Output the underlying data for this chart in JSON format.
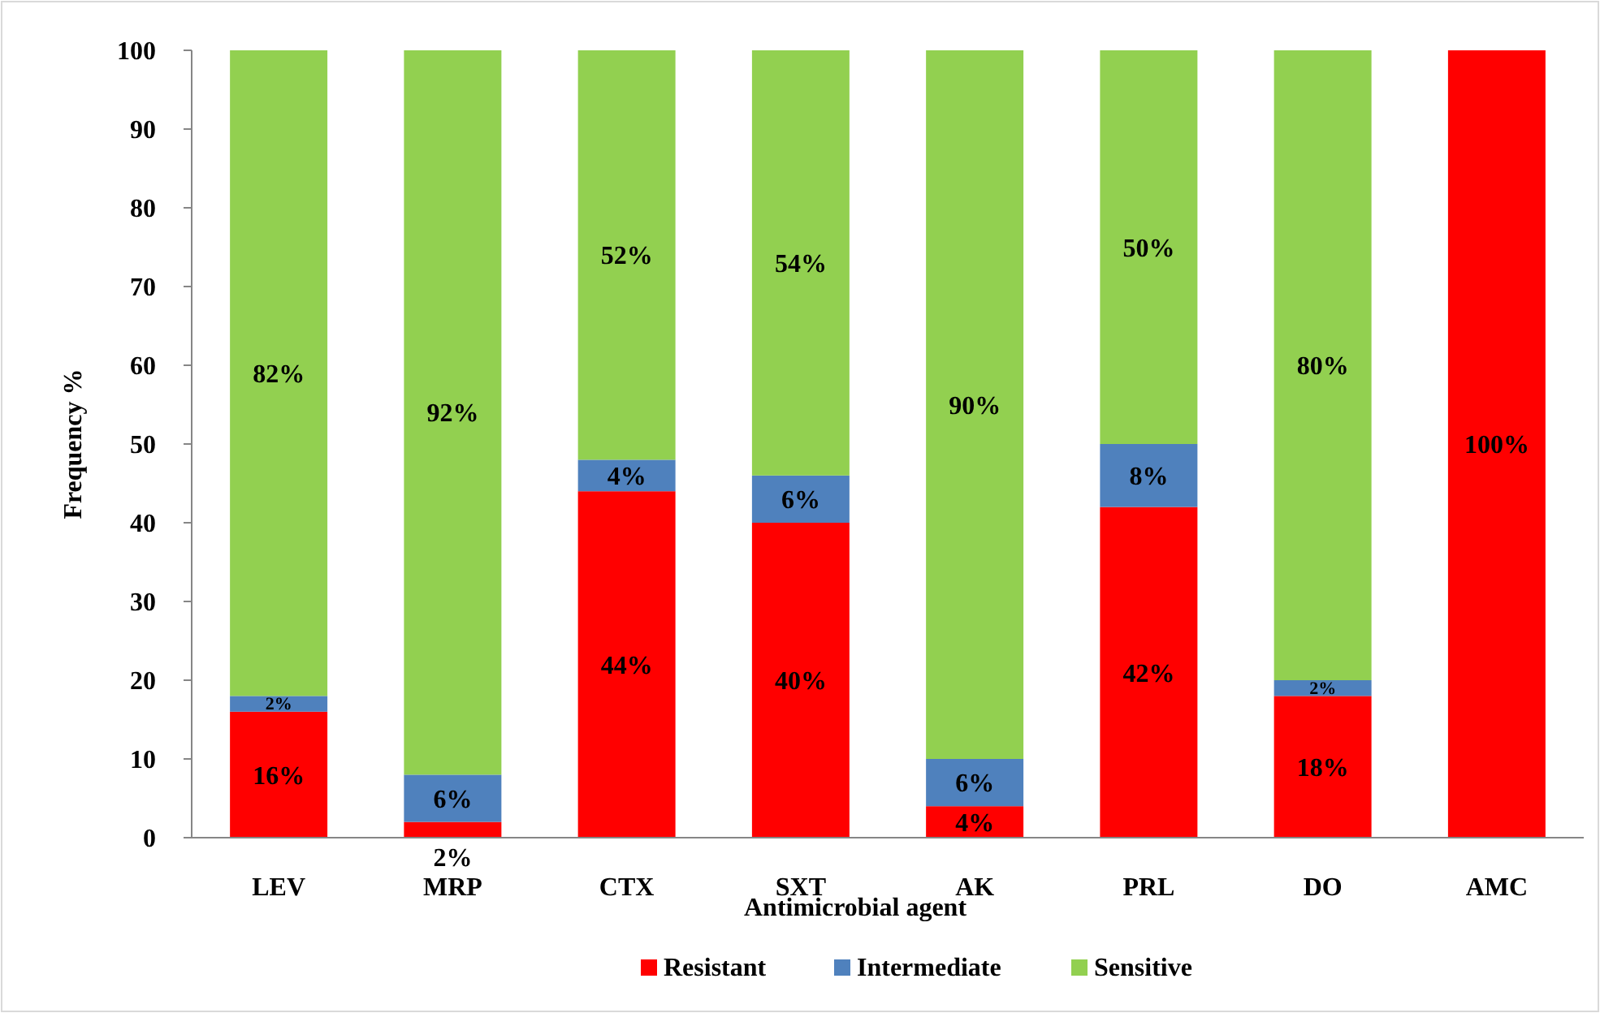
{
  "chart_data": {
    "type": "bar",
    "stacked": true,
    "xlabel": "Antimicrobial agent",
    "ylabel": "Frequency %",
    "categories": [
      "LEV",
      "MRP",
      "CTX",
      "SXT",
      "AK",
      "PRL",
      "DO",
      "AMC"
    ],
    "series": [
      {
        "name": "Resistant",
        "color": "#ff0000",
        "values": [
          16,
          2,
          44,
          40,
          4,
          42,
          18,
          100
        ],
        "value_labels": [
          "16%",
          "2%",
          "44%",
          "40%",
          "4%",
          "42%",
          "18%",
          "100%"
        ]
      },
      {
        "name": "Intermediate",
        "color": "#4f81bd",
        "values": [
          2,
          6,
          4,
          6,
          6,
          8,
          2,
          0
        ],
        "value_labels": [
          "2%",
          "6%",
          "4%",
          "6%",
          "6%",
          "8%",
          "2%",
          null
        ]
      },
      {
        "name": "Sensitive",
        "color": "#92d050",
        "values": [
          82,
          92,
          52,
          54,
          90,
          50,
          80,
          0
        ],
        "value_labels": [
          "82%",
          "92%",
          "52%",
          "54%",
          "90%",
          "50%",
          "80%",
          null
        ]
      }
    ],
    "ylim": [
      0,
      100
    ],
    "yticks": [
      0,
      10,
      20,
      30,
      40,
      50,
      60,
      70,
      80,
      90,
      100
    ],
    "grid": false,
    "legend": "bottom"
  }
}
